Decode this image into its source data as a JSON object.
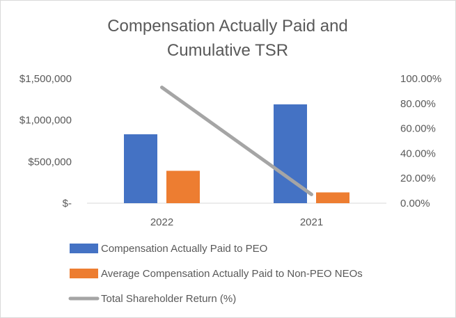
{
  "chart_data": {
    "type": "bar",
    "title_lines": [
      "Compensation Actually Paid and",
      "Cumulative TSR"
    ],
    "categories": [
      "2022",
      "2021"
    ],
    "y_left": {
      "ylim": [
        0,
        1500000
      ],
      "ticks": [
        0,
        500000,
        1000000,
        1500000
      ],
      "tick_labels": [
        "$-",
        "$500,000",
        "$1,000,000",
        "$1,500,000"
      ]
    },
    "y_right": {
      "ylim": [
        0,
        100
      ],
      "ticks": [
        0,
        20,
        40,
        60,
        80,
        100
      ],
      "tick_labels": [
        "0.00%",
        "20.00%",
        "40.00%",
        "60.00%",
        "80.00%",
        "100.00%"
      ]
    },
    "series": [
      {
        "name": "Compensation Actually Paid to PEO",
        "type": "bar",
        "axis": "left",
        "color": "#4472c4",
        "values": [
          830000,
          1190000
        ]
      },
      {
        "name": "Average Compensation Actually Paid to Non-PEO NEOs",
        "type": "bar",
        "axis": "left",
        "color": "#ed7d31",
        "values": [
          390000,
          130000
        ]
      },
      {
        "name": "Total Shareholder Return (%)",
        "type": "line",
        "axis": "right",
        "color": "#a5a5a5",
        "values": [
          93,
          7
        ]
      }
    ],
    "legend_position": "bottom",
    "grid": false
  }
}
